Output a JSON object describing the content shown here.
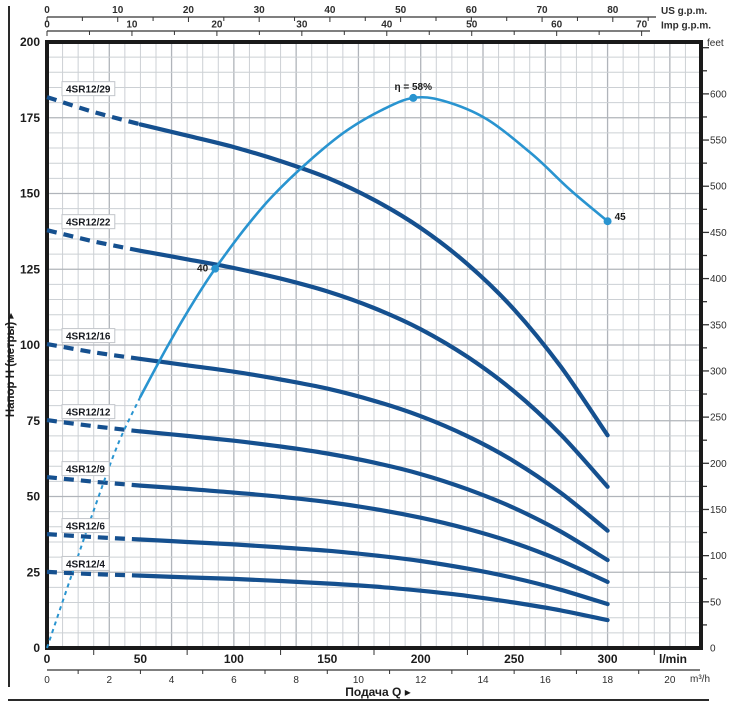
{
  "axes": {
    "top_us": {
      "unit": "US g.p.m.",
      "labels": [
        0,
        10,
        20,
        30,
        40,
        50,
        60,
        70,
        80
      ]
    },
    "top_imp": {
      "unit": "Imp g.p.m.",
      "labels": [
        0,
        10,
        20,
        30,
        40,
        50,
        60,
        70
      ]
    },
    "bottom_lmin": {
      "unit": "l/min",
      "labels": [
        0,
        50,
        100,
        150,
        200,
        250,
        300
      ]
    },
    "bottom_m3h": {
      "unit": "m³/h",
      "labels": [
        0,
        2,
        4,
        6,
        8,
        10,
        12,
        14,
        16,
        18,
        20
      ]
    },
    "left_m": {
      "title": "Напор H (метры) ▸",
      "labels": [
        0,
        25,
        50,
        75,
        100,
        125,
        150,
        175,
        200
      ]
    },
    "right_feet": {
      "unit": "feet",
      "labels": [
        0,
        50,
        100,
        150,
        200,
        250,
        300,
        350,
        400,
        450,
        500,
        550,
        600
      ]
    },
    "xlabel": "Подача Q ▸"
  },
  "chart_data": {
    "type": "line",
    "x_unit": "l/min",
    "x_range": [
      0,
      350
    ],
    "y_unit": "m",
    "y_range": [
      0,
      200
    ],
    "grid": {
      "x_minor_lmin": 8.3333,
      "x_major_lmin": 33.3333,
      "y_minor_m": 5,
      "y_major_m": 25
    },
    "unit_conversions": {
      "lmin_per_us_gpm": 3.785,
      "lmin_per_imp_gpm": 4.546,
      "lmin_per_m3h": 16.6667,
      "m_per_foot": 0.3048
    },
    "q_points_lmin": [
      0,
      25,
      50,
      75,
      100,
      125,
      150,
      175,
      200,
      225,
      250,
      275,
      300
    ],
    "dashed_below_q_lmin": 50,
    "curves": [
      {
        "label": "4SR12/29",
        "head_m": [
          181.8,
          176.9,
          172.8,
          169.1,
          165.3,
          160.7,
          155.2,
          147.9,
          138.6,
          126.7,
          111.7,
          92.8,
          70.2
        ]
      },
      {
        "label": "4SR12/22",
        "head_m": [
          137.9,
          134.2,
          131.1,
          128.3,
          125.4,
          121.9,
          117.7,
          112.2,
          105.2,
          96.1,
          84.7,
          70.4,
          53.2
        ]
      },
      {
        "label": "4SR12/16",
        "head_m": [
          100.3,
          97.6,
          95.4,
          93.3,
          91.2,
          88.6,
          85.6,
          81.6,
          76.5,
          69.9,
          61.6,
          51.2,
          38.7
        ]
      },
      {
        "label": "4SR12/12",
        "head_m": [
          75.2,
          73.2,
          71.5,
          70.0,
          68.4,
          66.5,
          64.2,
          61.2,
          57.4,
          52.4,
          46.2,
          38.4,
          29.0
        ]
      },
      {
        "label": "4SR12/9",
        "head_m": [
          56.4,
          54.9,
          53.6,
          52.5,
          51.3,
          49.9,
          48.2,
          45.9,
          43.0,
          39.3,
          34.7,
          28.8,
          21.8
        ]
      },
      {
        "label": "4SR12/6",
        "head_m": [
          37.6,
          36.6,
          35.8,
          35.0,
          34.2,
          33.2,
          32.1,
          30.6,
          28.7,
          26.2,
          23.1,
          19.2,
          14.5
        ]
      },
      {
        "label": "4SR12/4",
        "head_m": [
          25.1,
          24.4,
          23.9,
          23.3,
          22.8,
          22.1,
          21.3,
          20.3,
          18.9,
          17.2,
          15.0,
          12.4,
          9.2
        ]
      }
    ],
    "efficiency": {
      "eta_plot_scale_m_per_pct": 3.13,
      "dashed_below_q_lmin": 50,
      "points_q_eta": [
        [
          0,
          0
        ],
        [
          12,
          7
        ],
        [
          25,
          14.5
        ],
        [
          38,
          21.5
        ],
        [
          50,
          26.5
        ],
        [
          65,
          32
        ],
        [
          80,
          37
        ],
        [
          90,
          40
        ],
        [
          105,
          44
        ],
        [
          120,
          47.5
        ],
        [
          140,
          51.3
        ],
        [
          160,
          54.5
        ],
        [
          180,
          56.8
        ],
        [
          196,
          58
        ],
        [
          212,
          57.7
        ],
        [
          235,
          55.8
        ],
        [
          260,
          52
        ],
        [
          280,
          48.3
        ],
        [
          300,
          45
        ]
      ],
      "markers": [
        {
          "q": 90,
          "eta": 40,
          "label": "40",
          "pos": "left"
        },
        {
          "q": 196,
          "eta": 58,
          "label": "η = 58%",
          "pos": "above"
        },
        {
          "q": 300,
          "eta": 45,
          "label": "45",
          "pos": "right"
        }
      ]
    },
    "colors": {
      "pump_curve": "#15508f",
      "efficiency": "#2994d0",
      "grid_minor": "#ccd0d4",
      "grid_major": "#b0b4ba",
      "frame": "#1a1a1a",
      "tick": "#333333"
    }
  }
}
